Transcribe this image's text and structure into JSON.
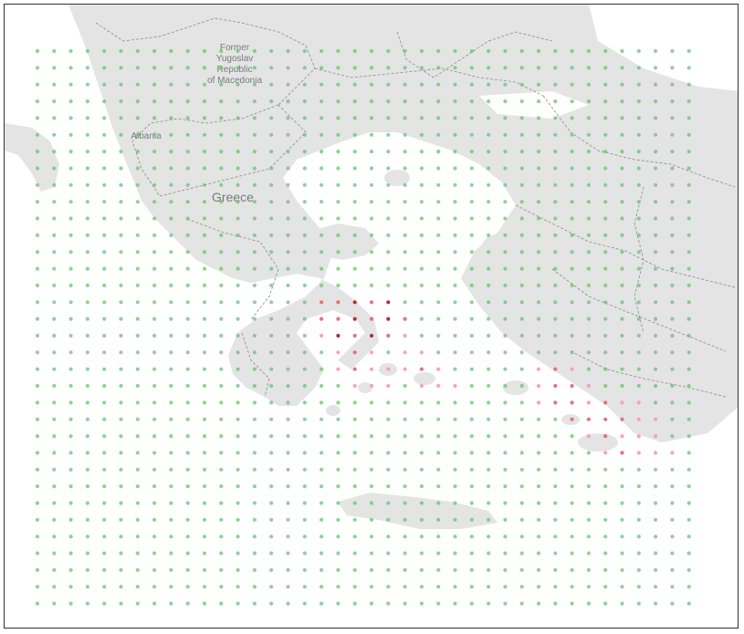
{
  "map": {
    "labels": {
      "macedonia": [
        "Former",
        "Yugoslav",
        "Republic",
        "of Macedonia"
      ],
      "albania": "Albania",
      "greece": "Greece"
    },
    "grid": {
      "rows": 34,
      "cols": 40
    },
    "colors": {
      "point_green": "#6cc26c",
      "point_light_red": "#f2a3a3",
      "point_red": "#e56b6b",
      "point_dark_red": "#b32424",
      "land": "#e4e4e4",
      "sea": "#ffffff"
    },
    "highlight_points": [
      {
        "row": 15,
        "col": 17,
        "level": 0.6
      },
      {
        "row": 15,
        "col": 18,
        "level": 0.6
      },
      {
        "row": 15,
        "col": 19,
        "level": 1.0
      },
      {
        "row": 15,
        "col": 20,
        "level": 0.8
      },
      {
        "row": 15,
        "col": 21,
        "level": 0.9
      },
      {
        "row": 16,
        "col": 17,
        "level": 0.6
      },
      {
        "row": 16,
        "col": 18,
        "level": 0.8
      },
      {
        "row": 16,
        "col": 19,
        "level": 0.9
      },
      {
        "row": 16,
        "col": 20,
        "level": 0.7
      },
      {
        "row": 16,
        "col": 21,
        "level": 1.0
      },
      {
        "row": 16,
        "col": 22,
        "level": 0.6
      },
      {
        "row": 17,
        "col": 17,
        "level": 0.5
      },
      {
        "row": 17,
        "col": 18,
        "level": 0.9
      },
      {
        "row": 17,
        "col": 19,
        "level": 0.8
      },
      {
        "row": 17,
        "col": 20,
        "level": 0.9
      },
      {
        "row": 17,
        "col": 21,
        "level": 0.6
      },
      {
        "row": 17,
        "col": 22,
        "level": 0.5
      },
      {
        "row": 18,
        "col": 18,
        "level": 0.5
      },
      {
        "row": 18,
        "col": 19,
        "level": 0.6
      },
      {
        "row": 18,
        "col": 20,
        "level": 0.5
      },
      {
        "row": 18,
        "col": 22,
        "level": 0.4
      },
      {
        "row": 18,
        "col": 23,
        "level": 0.5
      },
      {
        "row": 19,
        "col": 18,
        "level": 0.5
      },
      {
        "row": 19,
        "col": 19,
        "level": 0.6
      },
      {
        "row": 19,
        "col": 20,
        "level": 0.5
      },
      {
        "row": 19,
        "col": 21,
        "level": 0.5
      },
      {
        "row": 19,
        "col": 22,
        "level": 0.5
      },
      {
        "row": 19,
        "col": 23,
        "level": 0.6
      },
      {
        "row": 19,
        "col": 24,
        "level": 0.4
      },
      {
        "row": 19,
        "col": 30,
        "level": 0.5
      },
      {
        "row": 19,
        "col": 31,
        "level": 0.6
      },
      {
        "row": 19,
        "col": 32,
        "level": 0.5
      },
      {
        "row": 20,
        "col": 19,
        "level": 0.5
      },
      {
        "row": 20,
        "col": 20,
        "level": 0.5
      },
      {
        "row": 20,
        "col": 21,
        "level": 0.5
      },
      {
        "row": 20,
        "col": 23,
        "level": 0.5
      },
      {
        "row": 20,
        "col": 24,
        "level": 0.4
      },
      {
        "row": 20,
        "col": 25,
        "level": 0.4
      },
      {
        "row": 20,
        "col": 30,
        "level": 0.5
      },
      {
        "row": 20,
        "col": 31,
        "level": 0.6
      },
      {
        "row": 20,
        "col": 32,
        "level": 0.6
      },
      {
        "row": 20,
        "col": 33,
        "level": 0.4
      },
      {
        "row": 21,
        "col": 30,
        "level": 0.4
      },
      {
        "row": 21,
        "col": 31,
        "level": 0.6
      },
      {
        "row": 21,
        "col": 32,
        "level": 0.6
      },
      {
        "row": 21,
        "col": 33,
        "level": 0.5
      },
      {
        "row": 21,
        "col": 34,
        "level": 0.6
      },
      {
        "row": 21,
        "col": 35,
        "level": 0.5
      },
      {
        "row": 21,
        "col": 36,
        "level": 0.4
      },
      {
        "row": 22,
        "col": 32,
        "level": 0.6
      },
      {
        "row": 22,
        "col": 33,
        "level": 0.6
      },
      {
        "row": 22,
        "col": 34,
        "level": 0.6
      },
      {
        "row": 22,
        "col": 35,
        "level": 0.6
      },
      {
        "row": 22,
        "col": 36,
        "level": 0.5
      },
      {
        "row": 22,
        "col": 37,
        "level": 0.4
      },
      {
        "row": 23,
        "col": 33,
        "level": 0.5
      },
      {
        "row": 23,
        "col": 34,
        "level": 0.6
      },
      {
        "row": 23,
        "col": 35,
        "level": 0.5
      },
      {
        "row": 23,
        "col": 36,
        "level": 0.5
      },
      {
        "row": 23,
        "col": 37,
        "level": 0.4
      },
      {
        "row": 24,
        "col": 34,
        "level": 0.5
      },
      {
        "row": 24,
        "col": 35,
        "level": 0.6
      },
      {
        "row": 24,
        "col": 36,
        "level": 0.5
      },
      {
        "row": 24,
        "col": 37,
        "level": 0.5
      },
      {
        "row": 24,
        "col": 38,
        "level": 0.4
      }
    ]
  }
}
